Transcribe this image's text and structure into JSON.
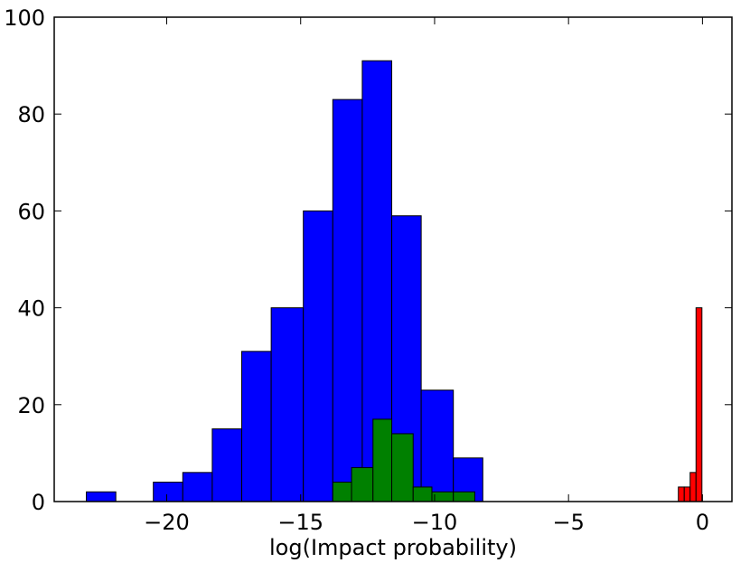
{
  "chart_data": {
    "type": "bar",
    "title": "",
    "xlabel": "log(Impact probability)",
    "ylabel": "",
    "xlim": [
      -24.2,
      1.1
    ],
    "ylim": [
      0,
      100
    ],
    "grid": false,
    "legend": "none",
    "x_ticks": [
      {
        "value": -20,
        "label": "−20"
      },
      {
        "value": -15,
        "label": "−15"
      },
      {
        "value": -10,
        "label": "−10"
      },
      {
        "value": -5,
        "label": "−5"
      },
      {
        "value": 0,
        "label": "0"
      }
    ],
    "y_ticks": [
      {
        "value": 0,
        "label": "0"
      },
      {
        "value": 20,
        "label": "20"
      },
      {
        "value": 40,
        "label": "40"
      },
      {
        "value": 60,
        "label": "60"
      },
      {
        "value": 80,
        "label": "80"
      },
      {
        "value": 100,
        "label": "100"
      }
    ],
    "series": [
      {
        "color": "#0000ff",
        "bins": [
          {
            "x0": -23.0,
            "x1": -21.9,
            "count": 2
          },
          {
            "x0": -20.5,
            "x1": -19.4,
            "count": 4
          },
          {
            "x0": -19.4,
            "x1": -18.3,
            "count": 6
          },
          {
            "x0": -18.3,
            "x1": -17.2,
            "count": 15
          },
          {
            "x0": -17.2,
            "x1": -16.1,
            "count": 31
          },
          {
            "x0": -16.1,
            "x1": -14.9,
            "count": 40
          },
          {
            "x0": -14.9,
            "x1": -13.8,
            "count": 60
          },
          {
            "x0": -13.8,
            "x1": -12.7,
            "count": 83
          },
          {
            "x0": -12.7,
            "x1": -11.6,
            "count": 91
          },
          {
            "x0": -11.6,
            "x1": -10.5,
            "count": 59
          },
          {
            "x0": -10.5,
            "x1": -9.3,
            "count": 23
          },
          {
            "x0": -9.3,
            "x1": -8.2,
            "count": 9
          }
        ]
      },
      {
        "color": "#008000",
        "bins": [
          {
            "x0": -13.8,
            "x1": -13.1,
            "count": 4
          },
          {
            "x0": -13.1,
            "x1": -12.3,
            "count": 7
          },
          {
            "x0": -12.3,
            "x1": -11.6,
            "count": 17
          },
          {
            "x0": -11.6,
            "x1": -10.8,
            "count": 14
          },
          {
            "x0": -10.8,
            "x1": -10.1,
            "count": 3
          },
          {
            "x0": -10.1,
            "x1": -9.3,
            "count": 2
          },
          {
            "x0": -9.3,
            "x1": -8.5,
            "count": 2
          }
        ]
      },
      {
        "color": "#ff0000",
        "bins": [
          {
            "x0": -0.9,
            "x1": -0.68,
            "count": 3
          },
          {
            "x0": -0.68,
            "x1": -0.46,
            "count": 3
          },
          {
            "x0": -0.46,
            "x1": -0.24,
            "count": 6
          },
          {
            "x0": -0.24,
            "x1": -0.02,
            "count": 40
          }
        ]
      }
    ]
  }
}
